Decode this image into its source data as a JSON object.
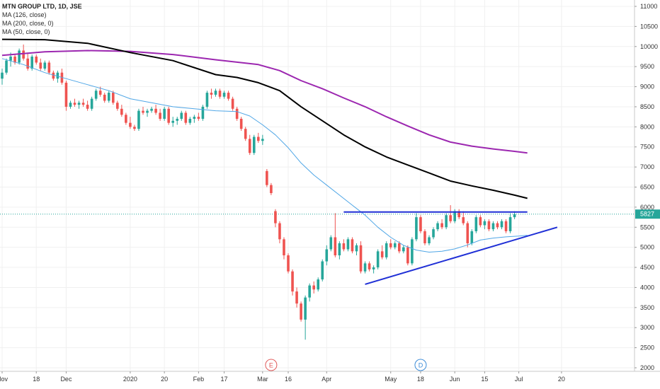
{
  "legend": {
    "symbol": "MTN GROUP LTD, 1D, JSE",
    "ma126": "MA (126, close)",
    "ma200": "MA (200, close, 0)",
    "ma50": "MA (50, close, 0)"
  },
  "price_label": "5827",
  "event_markers": [
    {
      "label": "E",
      "x": 63,
      "color": "#e05a5a"
    },
    {
      "label": "D",
      "x": 98,
      "color": "#3c8cd8"
    }
  ],
  "colors": {
    "up": "#26a69a",
    "down": "#ef5350",
    "ma200": "#000000",
    "ma126": "#9c27b0",
    "ma50": "#4fa6e6",
    "trendline": "#1f2fd6",
    "price_line": "#26a69a",
    "grid": "#f0f0f0"
  },
  "chart_data": {
    "type": "candlestick",
    "title": "MTN GROUP LTD, 1D, JSE",
    "ylim": [
      1900,
      11150
    ],
    "yticks": [
      2000,
      2500,
      3000,
      3500,
      4000,
      4500,
      5000,
      5500,
      6000,
      6500,
      7000,
      7500,
      8000,
      8500,
      9000,
      9500,
      10000,
      10500,
      11000
    ],
    "xlim": [
      0,
      136
    ],
    "xticks": [
      {
        "label": "Nov",
        "x": 0
      },
      {
        "label": "18",
        "x": 8
      },
      {
        "label": "Dec",
        "x": 15
      },
      {
        "label": "2020",
        "x": 30
      },
      {
        "label": "20",
        "x": 38
      },
      {
        "label": "Feb",
        "x": 46
      },
      {
        "label": "17",
        "x": 52
      },
      {
        "label": "Mar",
        "x": 61
      },
      {
        "label": "16",
        "x": 67
      },
      {
        "label": "Apr",
        "x": 76
      },
      {
        "label": "May",
        "x": 91
      },
      {
        "label": "18",
        "x": 98
      },
      {
        "label": "Jun",
        "x": 106
      },
      {
        "label": "15",
        "x": 113
      },
      {
        "label": "Jul",
        "x": 121
      },
      {
        "label": "20",
        "x": 131
      }
    ],
    "candles": [
      [
        9200,
        9450,
        9050,
        9350
      ],
      [
        9350,
        9700,
        9300,
        9650
      ],
      [
        9650,
        9850,
        9500,
        9750
      ],
      [
        9750,
        9800,
        9550,
        9600
      ],
      [
        9600,
        9950,
        9550,
        9900
      ],
      [
        9900,
        10050,
        9650,
        9700
      ],
      [
        9700,
        9850,
        9400,
        9450
      ],
      [
        9450,
        9800,
        9400,
        9750
      ],
      [
        9750,
        9800,
        9550,
        9600
      ],
      [
        9600,
        9700,
        9400,
        9450
      ],
      [
        9450,
        9650,
        9400,
        9600
      ],
      [
        9600,
        9650,
        9300,
        9350
      ],
      [
        9350,
        9400,
        9150,
        9200
      ],
      [
        9200,
        9400,
        9100,
        9350
      ],
      [
        9350,
        9450,
        9050,
        9100
      ],
      [
        9100,
        9150,
        8400,
        8500
      ],
      [
        8500,
        8650,
        8450,
        8600
      ],
      [
        8600,
        8700,
        8500,
        8550
      ],
      [
        8550,
        8650,
        8450,
        8600
      ],
      [
        8600,
        8700,
        8500,
        8550
      ],
      [
        8550,
        8650,
        8400,
        8450
      ],
      [
        8450,
        8750,
        8400,
        8700
      ],
      [
        8700,
        8950,
        8650,
        8900
      ],
      [
        8900,
        9000,
        8750,
        8800
      ],
      [
        8800,
        8850,
        8600,
        8650
      ],
      [
        8650,
        8900,
        8600,
        8850
      ],
      [
        8850,
        8900,
        8550,
        8600
      ],
      [
        8600,
        8650,
        8400,
        8450
      ],
      [
        8450,
        8550,
        8250,
        8300
      ],
      [
        8300,
        8350,
        8050,
        8100
      ],
      [
        8100,
        8250,
        7950,
        8000
      ],
      [
        8000,
        8050,
        7900,
        7950
      ],
      [
        7950,
        8450,
        7900,
        8400
      ],
      [
        8400,
        8500,
        8300,
        8350
      ],
      [
        8350,
        8450,
        8250,
        8400
      ],
      [
        8400,
        8500,
        8350,
        8450
      ],
      [
        8450,
        8550,
        8300,
        8350
      ],
      [
        8350,
        8450,
        8150,
        8200
      ],
      [
        8200,
        8500,
        8150,
        8450
      ],
      [
        8450,
        8500,
        8050,
        8100
      ],
      [
        8100,
        8250,
        8000,
        8150
      ],
      [
        8150,
        8250,
        8050,
        8200
      ],
      [
        8200,
        8400,
        8150,
        8350
      ],
      [
        8350,
        8400,
        8050,
        8100
      ],
      [
        8100,
        8250,
        8050,
        8200
      ],
      [
        8200,
        8300,
        8100,
        8250
      ],
      [
        8250,
        8350,
        8150,
        8200
      ],
      [
        8200,
        8550,
        8150,
        8500
      ],
      [
        8500,
        8900,
        8450,
        8850
      ],
      [
        8850,
        8950,
        8700,
        8800
      ],
      [
        8800,
        8950,
        8750,
        8900
      ],
      [
        8900,
        8950,
        8700,
        8750
      ],
      [
        8750,
        8900,
        8700,
        8850
      ],
      [
        8850,
        8900,
        8650,
        8700
      ],
      [
        8700,
        8750,
        8400,
        8450
      ],
      [
        8450,
        8500,
        8150,
        8200
      ],
      [
        8200,
        8250,
        7900,
        7950
      ],
      [
        7950,
        8000,
        7650,
        7700
      ],
      [
        7700,
        7800,
        7300,
        7350
      ],
      [
        7350,
        7800,
        7300,
        7750
      ],
      [
        7750,
        7850,
        7600,
        7650
      ],
      [
        7650,
        7800,
        7550,
        7700
      ],
      [
        6900,
        6950,
        6500,
        6550
      ],
      [
        6550,
        6600,
        6300,
        6350
      ],
      [
        5900,
        5950,
        5500,
        5600
      ],
      [
        5600,
        5650,
        5100,
        5200
      ],
      [
        5200,
        5250,
        4700,
        4800
      ],
      [
        4800,
        4850,
        4350,
        4400
      ],
      [
        4400,
        4450,
        3800,
        3900
      ],
      [
        3900,
        4000,
        3500,
        3600
      ],
      [
        3600,
        3650,
        3150,
        3200
      ],
      [
        3200,
        3800,
        2700,
        3750
      ],
      [
        3750,
        4100,
        3650,
        4050
      ],
      [
        4050,
        4150,
        3850,
        3950
      ],
      [
        3950,
        4250,
        3900,
        4200
      ],
      [
        4200,
        4700,
        4150,
        4650
      ],
      [
        4650,
        5050,
        4550,
        4950
      ],
      [
        4950,
        5300,
        4900,
        5250
      ],
      [
        5250,
        5850,
        4750,
        4800
      ],
      [
        4800,
        5150,
        4700,
        5100
      ],
      [
        5100,
        5200,
        4900,
        4950
      ],
      [
        4950,
        5250,
        4900,
        5200
      ],
      [
        5200,
        5250,
        4850,
        4900
      ],
      [
        4900,
        5100,
        4800,
        5050
      ],
      [
        5050,
        5150,
        4350,
        4400
      ],
      [
        4400,
        4650,
        4350,
        4600
      ],
      [
        4600,
        4650,
        4400,
        4450
      ],
      [
        4450,
        4550,
        4350,
        4500
      ],
      [
        4500,
        4950,
        4450,
        4900
      ],
      [
        4900,
        5050,
        4700,
        4750
      ],
      [
        4750,
        5150,
        4700,
        5100
      ],
      [
        5100,
        5200,
        4950,
        5000
      ],
      [
        5000,
        5150,
        4950,
        5100
      ],
      [
        5100,
        5150,
        4850,
        4900
      ],
      [
        4900,
        5050,
        4850,
        5000
      ],
      [
        5000,
        5050,
        4550,
        4600
      ],
      [
        4600,
        5250,
        4550,
        5200
      ],
      [
        5200,
        5850,
        5150,
        5750
      ],
      [
        5750,
        5800,
        5350,
        5400
      ],
      [
        5400,
        5450,
        5050,
        5100
      ],
      [
        5100,
        5300,
        5050,
        5250
      ],
      [
        5250,
        5500,
        5200,
        5450
      ],
      [
        5450,
        5650,
        5400,
        5600
      ],
      [
        5600,
        5700,
        5450,
        5500
      ],
      [
        5500,
        5850,
        5450,
        5800
      ],
      [
        5800,
        6050,
        5600,
        5650
      ],
      [
        5650,
        5950,
        5600,
        5900
      ],
      [
        5900,
        5950,
        5700,
        5750
      ],
      [
        5750,
        5900,
        5550,
        5600
      ],
      [
        5600,
        5650,
        5000,
        5100
      ],
      [
        5100,
        5450,
        5050,
        5400
      ],
      [
        5400,
        5800,
        5350,
        5750
      ],
      [
        5750,
        5800,
        5500,
        5550
      ],
      [
        5550,
        5700,
        5450,
        5650
      ],
      [
        5650,
        5700,
        5400,
        5450
      ],
      [
        5450,
        5650,
        5400,
        5600
      ],
      [
        5600,
        5650,
        5450,
        5500
      ],
      [
        5500,
        5700,
        5450,
        5650
      ],
      [
        5650,
        5700,
        5350,
        5400
      ],
      [
        5400,
        5850,
        5350,
        5750
      ],
      [
        5750,
        5900,
        5700,
        5827
      ]
    ],
    "ma200": [
      [
        0,
        10180
      ],
      [
        10,
        10170
      ],
      [
        20,
        10080
      ],
      [
        30,
        9850
      ],
      [
        40,
        9650
      ],
      [
        50,
        9300
      ],
      [
        55,
        9230
      ],
      [
        60,
        9100
      ],
      [
        65,
        8900
      ],
      [
        70,
        8500
      ],
      [
        75,
        8150
      ],
      [
        80,
        7800
      ],
      [
        85,
        7500
      ],
      [
        90,
        7250
      ],
      [
        95,
        7050
      ],
      [
        100,
        6850
      ],
      [
        105,
        6650
      ],
      [
        110,
        6530
      ],
      [
        115,
        6420
      ],
      [
        120,
        6300
      ],
      [
        123,
        6220
      ]
    ],
    "ma126": [
      [
        0,
        9780
      ],
      [
        10,
        9870
      ],
      [
        20,
        9900
      ],
      [
        30,
        9880
      ],
      [
        40,
        9800
      ],
      [
        50,
        9670
      ],
      [
        60,
        9550
      ],
      [
        65,
        9400
      ],
      [
        70,
        9150
      ],
      [
        75,
        8950
      ],
      [
        80,
        8720
      ],
      [
        85,
        8500
      ],
      [
        90,
        8250
      ],
      [
        95,
        8020
      ],
      [
        100,
        7800
      ],
      [
        105,
        7620
      ],
      [
        110,
        7520
      ],
      [
        115,
        7450
      ],
      [
        120,
        7390
      ],
      [
        123,
        7350
      ]
    ],
    "ma50": [
      [
        0,
        9700
      ],
      [
        5,
        9550
      ],
      [
        10,
        9350
      ],
      [
        15,
        9200
      ],
      [
        20,
        9050
      ],
      [
        25,
        8900
      ],
      [
        30,
        8700
      ],
      [
        35,
        8600
      ],
      [
        40,
        8500
      ],
      [
        45,
        8450
      ],
      [
        50,
        8400
      ],
      [
        55,
        8380
      ],
      [
        58,
        8270
      ],
      [
        61,
        8050
      ],
      [
        64,
        7800
      ],
      [
        67,
        7480
      ],
      [
        70,
        7100
      ],
      [
        73,
        6800
      ],
      [
        76,
        6550
      ],
      [
        79,
        6300
      ],
      [
        82,
        6050
      ],
      [
        85,
        5800
      ],
      [
        88,
        5500
      ],
      [
        91,
        5250
      ],
      [
        94,
        5050
      ],
      [
        97,
        4930
      ],
      [
        100,
        4880
      ],
      [
        103,
        4900
      ],
      [
        106,
        4960
      ],
      [
        109,
        5060
      ],
      [
        112,
        5180
      ],
      [
        115,
        5230
      ],
      [
        118,
        5260
      ],
      [
        121,
        5280
      ],
      [
        123,
        5300
      ]
    ],
    "trendlines": [
      {
        "x1": 80,
        "y1": 5880,
        "x2": 123,
        "y2": 5880
      },
      {
        "x1": 85,
        "y1": 4080,
        "x2": 130,
        "y2": 5500
      }
    ],
    "last_price": 5827
  }
}
